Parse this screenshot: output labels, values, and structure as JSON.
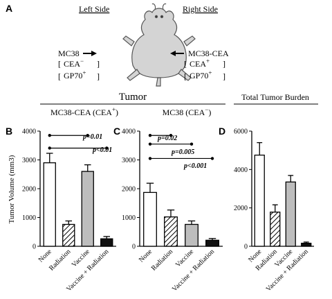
{
  "panel_a": {
    "label": "A",
    "left_side": "Left Side",
    "right_side": "Right Side",
    "left_tumor": "MC38",
    "left_cea": "CEA",
    "left_cea_sup": "−",
    "left_gp70": "GP70",
    "left_gp70_sup": "+",
    "right_tumor": "MC38-CEA",
    "right_cea": "CEA",
    "right_cea_sup": "+",
    "right_gp70": "GP70",
    "right_gp70_sup": "+",
    "mouse_icon": "mouse-icon",
    "arrow_icon": "arrow-right-icon"
  },
  "headers": {
    "tumor": "Tumor",
    "total_tumor_burden": "Total Tumor Burden",
    "mc38cea": "MC38-CEA (CEA",
    "mc38cea_sup": "+",
    "mc38": "MC38 (CEA",
    "mc38_sup": "−",
    "close_paren": ")"
  },
  "chart_data": [
    {
      "panel": "B",
      "type": "bar",
      "ylabel": "Tumor Volume (mm3)",
      "ylim": [
        0,
        4000
      ],
      "yticks": [
        "0",
        "1000",
        "2000",
        "3000",
        "4000"
      ],
      "categories": [
        "None",
        "Radiation",
        "Vaccine",
        "Vaccine + Radiation"
      ],
      "values": [
        2900,
        760,
        2600,
        260
      ],
      "errors": [
        330,
        120,
        230,
        80
      ],
      "bar_styles": [
        "white",
        "hatched",
        "gray",
        "black"
      ],
      "comparisons": [
        {
          "from": 0,
          "to": 2,
          "y": 3850,
          "label": ""
        },
        {
          "from": 0,
          "to": 3,
          "y": 3410,
          "label": ""
        }
      ],
      "annotations": [
        "p=0.01",
        "p<0.01"
      ]
    },
    {
      "panel": "C",
      "type": "bar",
      "ylabel": "",
      "ylim": [
        0,
        4000
      ],
      "yticks": [
        "0",
        "1000",
        "2000",
        "3000",
        "4000"
      ],
      "categories": [
        "None",
        "Radiation",
        "Vaccine",
        "Vaccine + Radiation"
      ],
      "values": [
        1870,
        1020,
        760,
        210
      ],
      "errors": [
        320,
        240,
        120,
        60
      ],
      "bar_styles": [
        "white",
        "hatched",
        "gray",
        "black"
      ],
      "comparisons": [
        {
          "from": 0,
          "to": 1,
          "y": 3850,
          "label": "p=0.02"
        },
        {
          "from": 0,
          "to": 2,
          "y": 3550,
          "label": "p=0.005"
        },
        {
          "from": 0,
          "to": 3,
          "y": 3050,
          "label": "p<0.001"
        }
      ]
    },
    {
      "panel": "D",
      "type": "bar",
      "ylabel": "",
      "ylim": [
        0,
        6000
      ],
      "yticks": [
        "0",
        "2000",
        "4000",
        "6000"
      ],
      "categories": [
        "None",
        "Radiation",
        "Vaccine",
        "Vaccine + Radiation"
      ],
      "values": [
        4750,
        1780,
        3350,
        160
      ],
      "errors": [
        650,
        380,
        340,
        60
      ],
      "bar_styles": [
        "white",
        "hatched",
        "gray",
        "black"
      ],
      "comparisons": []
    }
  ],
  "colors": {
    "white_bar": "#ffffff",
    "gray_bar": "#bdbdbd",
    "black_bar": "#111111",
    "stroke": "#000000"
  }
}
